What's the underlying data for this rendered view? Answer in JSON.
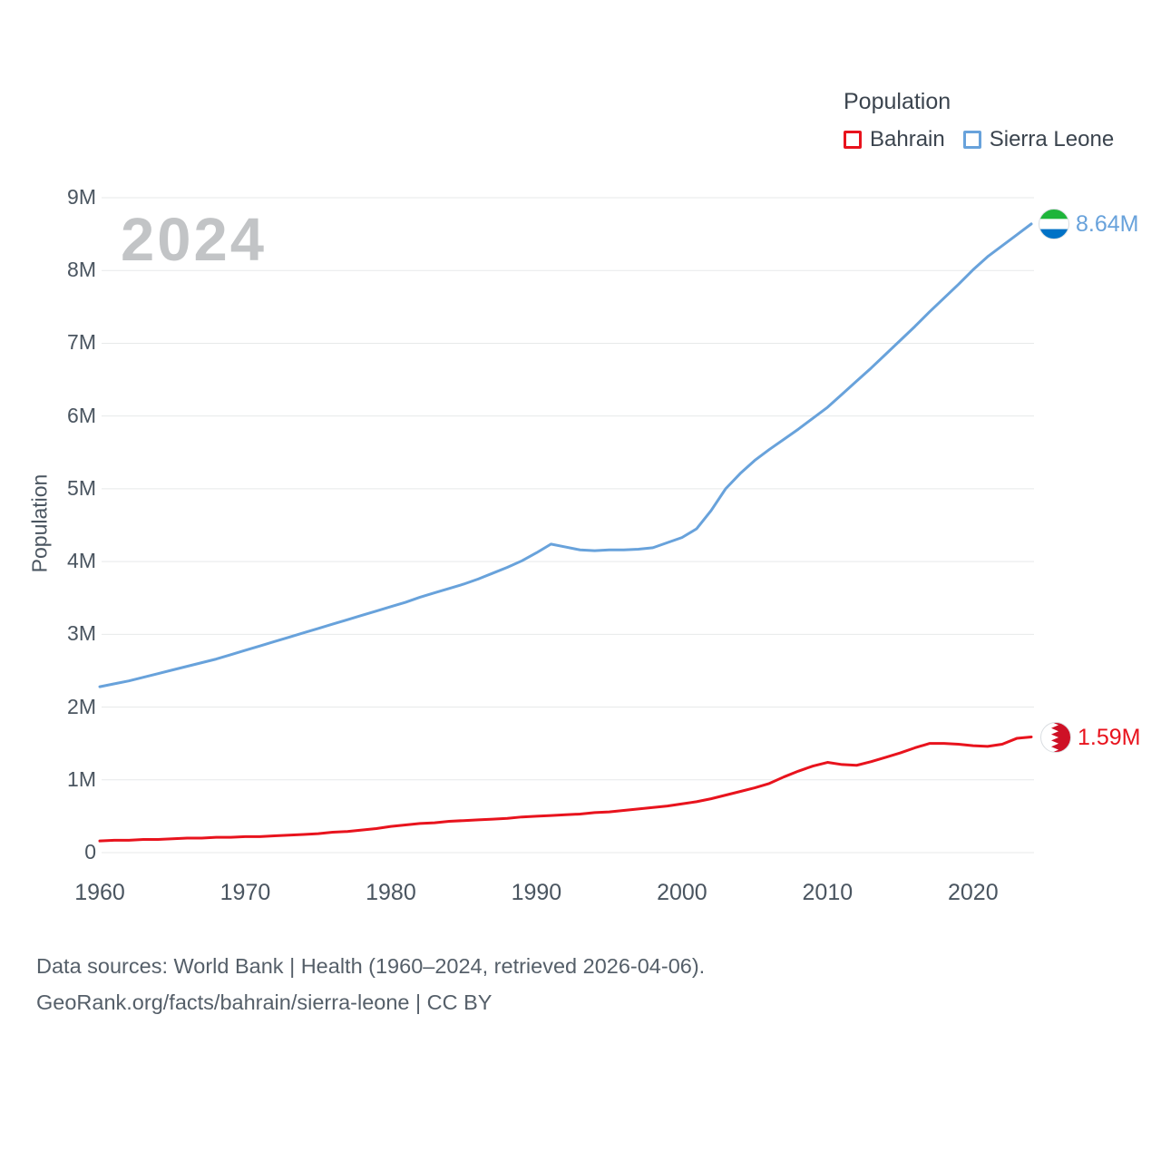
{
  "watermark": "2024",
  "legend": {
    "title": "Population",
    "items": [
      {
        "label": "Bahrain",
        "color": "#e8131d"
      },
      {
        "label": "Sierra Leone",
        "color": "#68a2db"
      }
    ]
  },
  "y_axis": {
    "label": "Population",
    "ticks": [
      "0",
      "1M",
      "2M",
      "3M",
      "4M",
      "5M",
      "6M",
      "7M",
      "8M",
      "9M"
    ]
  },
  "x_axis": {
    "ticks": [
      "1960",
      "1970",
      "1980",
      "1990",
      "2000",
      "2010",
      "2020"
    ]
  },
  "end_labels": {
    "sierra_leone": "8.64M",
    "bahrain": "1.59M"
  },
  "icons": {
    "sierra_leone_flag": {
      "name": "sierra-leone-flag-icon",
      "colors": [
        "#1EB53A",
        "#FFFFFF",
        "#0072C6"
      ]
    },
    "bahrain_flag": {
      "name": "bahrain-flag-icon",
      "colors": [
        "#FFFFFF",
        "#CE1126"
      ]
    }
  },
  "footer": {
    "line1": "Data sources: World Bank | Health (1960–2024, retrieved 2026-04-06).",
    "line2": "GeoRank.org/facts/bahrain/sierra-leone | CC BY"
  },
  "chart_data": {
    "type": "line",
    "title": "Population",
    "unit": "millions",
    "ylabel": "Population",
    "ylim": [
      0,
      9
    ],
    "y_ticks": [
      0,
      1,
      2,
      3,
      4,
      5,
      6,
      7,
      8,
      9
    ],
    "x_ticks": [
      1960,
      1970,
      1980,
      1990,
      2000,
      2010,
      2020
    ],
    "grid": true,
    "legend_position": "top-right",
    "x": [
      1960,
      1961,
      1962,
      1963,
      1964,
      1965,
      1966,
      1967,
      1968,
      1969,
      1970,
      1971,
      1972,
      1973,
      1974,
      1975,
      1976,
      1977,
      1978,
      1979,
      1980,
      1981,
      1982,
      1983,
      1984,
      1985,
      1986,
      1987,
      1988,
      1989,
      1990,
      1991,
      1992,
      1993,
      1994,
      1995,
      1996,
      1997,
      1998,
      1999,
      2000,
      2001,
      2002,
      2003,
      2004,
      2005,
      2006,
      2007,
      2008,
      2009,
      2010,
      2011,
      2012,
      2013,
      2014,
      2015,
      2016,
      2017,
      2018,
      2019,
      2020,
      2021,
      2022,
      2023,
      2024
    ],
    "series": [
      {
        "name": "Bahrain",
        "color": "#e8131d",
        "end_label": "1.59M",
        "values": [
          0.16,
          0.17,
          0.17,
          0.18,
          0.18,
          0.19,
          0.2,
          0.2,
          0.21,
          0.21,
          0.22,
          0.22,
          0.23,
          0.24,
          0.25,
          0.26,
          0.28,
          0.29,
          0.31,
          0.33,
          0.36,
          0.38,
          0.4,
          0.41,
          0.43,
          0.44,
          0.45,
          0.46,
          0.47,
          0.49,
          0.5,
          0.51,
          0.52,
          0.53,
          0.55,
          0.56,
          0.58,
          0.6,
          0.62,
          0.64,
          0.67,
          0.7,
          0.74,
          0.79,
          0.84,
          0.89,
          0.95,
          1.04,
          1.12,
          1.19,
          1.24,
          1.21,
          1.2,
          1.25,
          1.31,
          1.37,
          1.44,
          1.5,
          1.5,
          1.49,
          1.47,
          1.46,
          1.49,
          1.57,
          1.59
        ]
      },
      {
        "name": "Sierra Leone",
        "color": "#68a2db",
        "end_label": "8.64M",
        "values": [
          2.28,
          2.32,
          2.36,
          2.41,
          2.46,
          2.51,
          2.56,
          2.61,
          2.66,
          2.72,
          2.78,
          2.84,
          2.9,
          2.96,
          3.02,
          3.08,
          3.14,
          3.2,
          3.26,
          3.32,
          3.38,
          3.44,
          3.51,
          3.57,
          3.63,
          3.69,
          3.76,
          3.84,
          3.92,
          4.01,
          4.12,
          4.24,
          4.2,
          4.16,
          4.15,
          4.16,
          4.16,
          4.17,
          4.19,
          4.26,
          4.33,
          4.45,
          4.7,
          5.0,
          5.21,
          5.39,
          5.54,
          5.68,
          5.82,
          5.97,
          6.12,
          6.3,
          6.48,
          6.66,
          6.85,
          7.04,
          7.23,
          7.43,
          7.62,
          7.81,
          8.01,
          8.19,
          8.34,
          8.49,
          8.64
        ]
      }
    ]
  }
}
